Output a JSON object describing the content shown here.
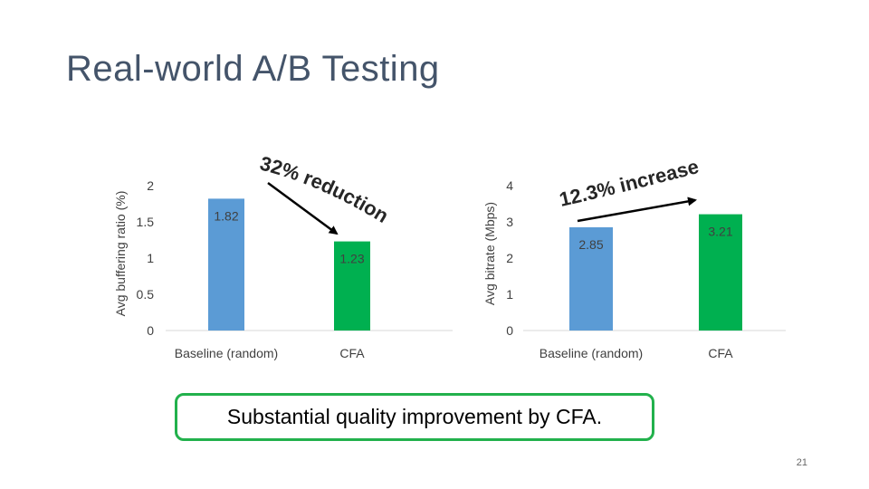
{
  "slide": {
    "title": "Real-world A/B Testing",
    "callout": "Substantial quality improvement by CFA.",
    "page_number": "21"
  },
  "colors": {
    "baseline_bar": "#5b9bd5",
    "cfa_bar": "#00b050",
    "callout_border": "#22b14c",
    "title": "#44546a"
  },
  "chart_data": [
    {
      "type": "bar",
      "categories": [
        "Baseline (random)",
        "CFA"
      ],
      "values": [
        1.82,
        1.23
      ],
      "data_labels": [
        "1.82",
        "1.23"
      ],
      "ylabel": "Avg buffering ratio (%)",
      "ylim": [
        0,
        2
      ],
      "yticks": [
        0,
        0.5,
        1,
        1.5,
        2
      ],
      "ytick_labels": [
        "0",
        "0.5",
        "1",
        "1.5",
        "2"
      ],
      "grid": false,
      "annotation": "32% reduction"
    },
    {
      "type": "bar",
      "categories": [
        "Baseline (random)",
        "CFA"
      ],
      "values": [
        2.85,
        3.21
      ],
      "data_labels": [
        "2.85",
        "3.21"
      ],
      "ylabel": "Avg bitrate (Mbps)",
      "ylim": [
        0,
        4
      ],
      "yticks": [
        0,
        1,
        2,
        3,
        4
      ],
      "ytick_labels": [
        "0",
        "1",
        "2",
        "3",
        "4"
      ],
      "grid": false,
      "annotation": "12.3% increase"
    }
  ]
}
